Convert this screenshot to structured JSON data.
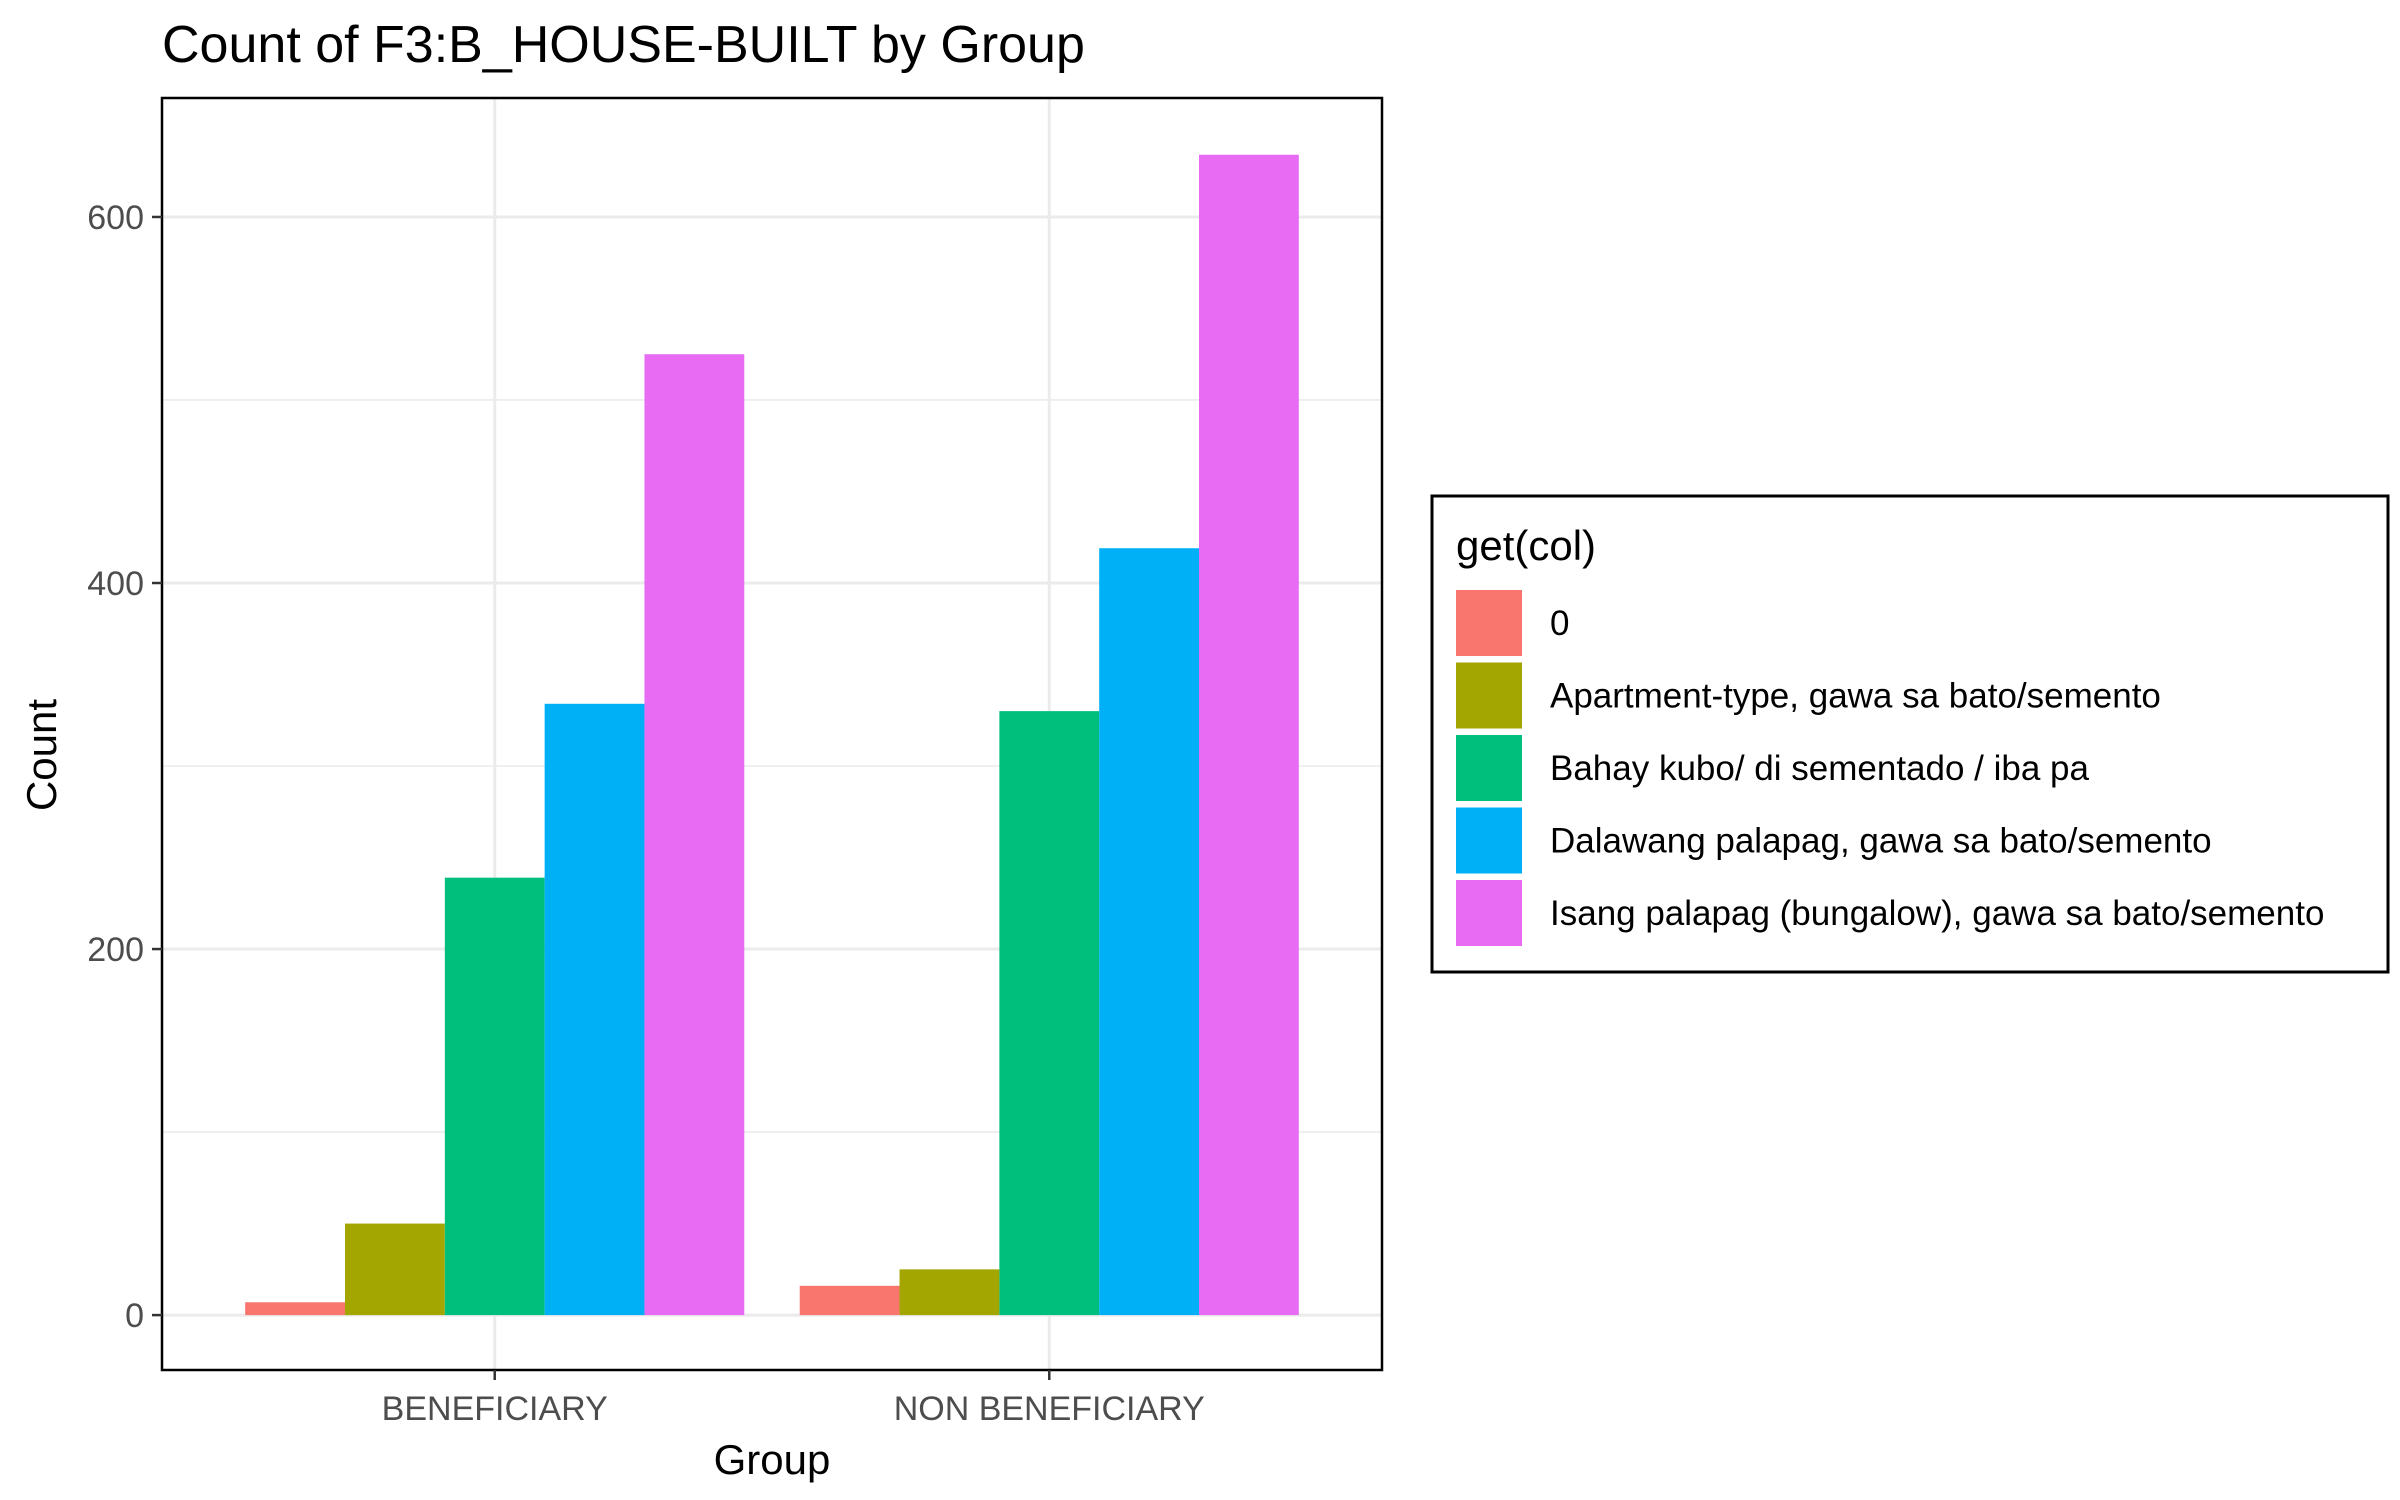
{
  "chart_data": {
    "type": "bar",
    "title": "Count of F3:B_HOUSE-BUILT by Group",
    "xlabel": "Group",
    "ylabel": "Count",
    "categories": [
      "BENEFICIARY",
      "NON BENEFICIARY"
    ],
    "series": [
      {
        "name": "0",
        "color": "#F8766D",
        "values": [
          7,
          16
        ]
      },
      {
        "name": "Apartment-type, gawa sa bato/semento",
        "color": "#A3A500",
        "values": [
          50,
          25
        ]
      },
      {
        "name": "Bahay kubo/ di sementado / iba pa",
        "color": "#00BF7D",
        "values": [
          239,
          330
        ]
      },
      {
        "name": "Dalawang palapag, gawa sa bato/semento",
        "color": "#00B0F6",
        "values": [
          334,
          419
        ]
      },
      {
        "name": "Isang palapag (bungalow), gawa sa bato/semento",
        "color": "#E76BF3",
        "values": [
          525,
          634
        ]
      }
    ],
    "ylim": [
      -30,
      665
    ],
    "yticks": [
      0,
      200,
      400,
      600
    ],
    "grid": true,
    "legend": {
      "title": "get(col)",
      "position": "right"
    }
  }
}
